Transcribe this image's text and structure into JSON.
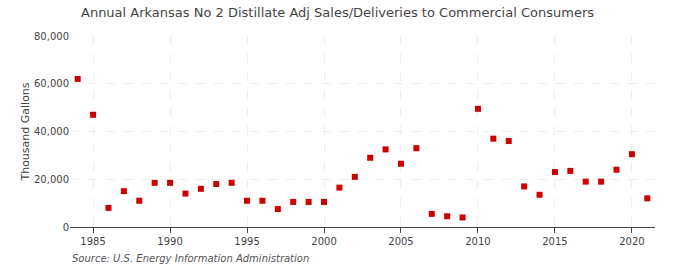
{
  "chart_data": {
    "type": "scatter",
    "title": "Annual Arkansas No 2 Distillate Adj Sales/Deliveries to Commercial Consumers",
    "ylabel": "Thousand Gallons",
    "annotations": [
      "Source: U.S. Energy Information Administration"
    ],
    "x": [
      1984,
      1985,
      1986,
      1987,
      1988,
      1989,
      1990,
      1991,
      1992,
      1993,
      1994,
      1995,
      1996,
      1997,
      1998,
      1999,
      2000,
      2001,
      2002,
      2003,
      2004,
      2005,
      2006,
      2007,
      2008,
      2009,
      2010,
      2011,
      2012,
      2013,
      2014,
      2015,
      2016,
      2017,
      2018,
      2019,
      2020,
      2021
    ],
    "values": [
      62000,
      47000,
      8000,
      15000,
      11000,
      18500,
      18500,
      14000,
      16000,
      18000,
      18500,
      11000,
      11000,
      7500,
      10500,
      10500,
      10500,
      16500,
      21000,
      29000,
      32500,
      26500,
      33000,
      5500,
      4500,
      4000,
      49500,
      37000,
      36000,
      17000,
      13500,
      23000,
      23500,
      19000,
      19000,
      24000,
      30500,
      12000
    ],
    "color": "#cc0000",
    "marker": "square",
    "xlim": [
      1983.5,
      2021.5
    ],
    "xticks": [
      1985,
      1990,
      1995,
      2000,
      2005,
      2010,
      2015,
      2020
    ],
    "ylim": [
      0,
      80000
    ],
    "yticks": [
      0,
      {
        "value": 20000,
        "label": "20,000"
      },
      {
        "value": 40000,
        "label": "40,000"
      },
      {
        "value": 60000,
        "label": "60,000"
      },
      {
        "value": 80000,
        "label": "80,000"
      }
    ],
    "grid": true
  }
}
